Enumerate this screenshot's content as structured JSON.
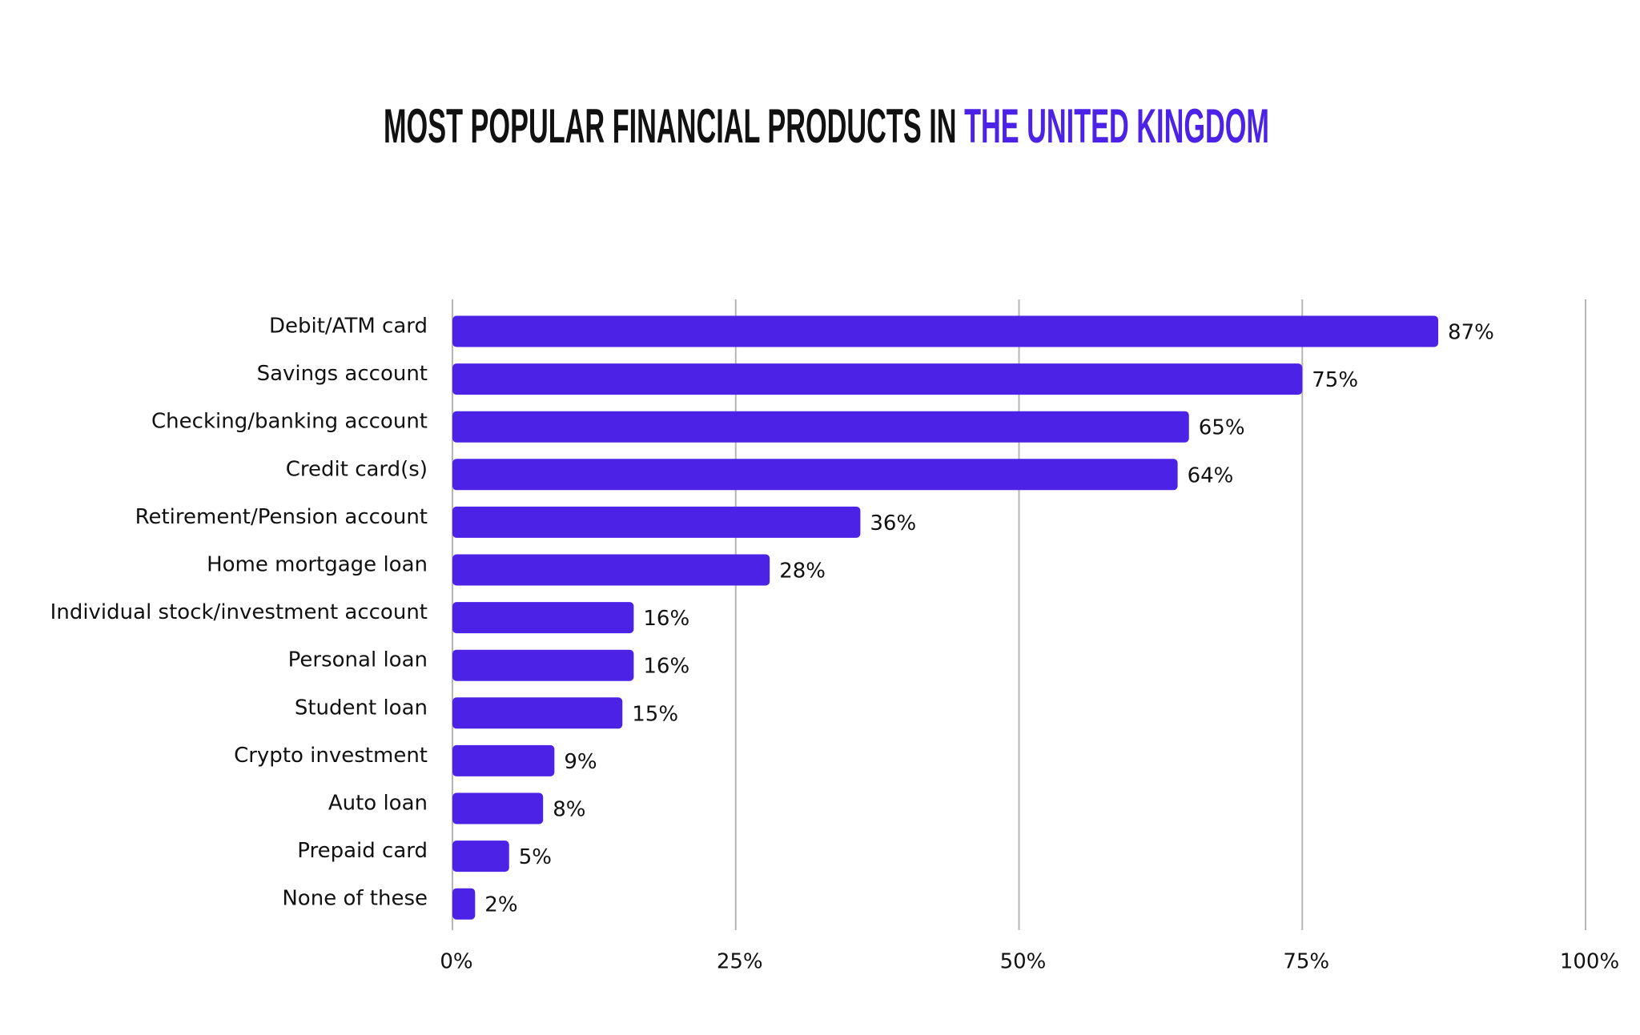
{
  "chart_data": {
    "type": "bar",
    "orientation": "horizontal",
    "title": "MOST POPULAR FINANCIAL PRODUCTS IN",
    "title_highlight": "THE UNITED KINGDOM",
    "title_highlight_color": "#4b22e6",
    "categories": [
      "Debit/ATM card",
      "Savings account",
      "Checking/banking account",
      "Credit card(s)",
      "Retirement/Pension account",
      "Home mortgage loan",
      "Individual stock/investment account",
      "Personal loan",
      "Student loan",
      "Crypto investment",
      "Auto loan",
      "Prepaid card",
      "None of these"
    ],
    "values": [
      87,
      75,
      65,
      64,
      36,
      28,
      16,
      16,
      15,
      9,
      8,
      5,
      2
    ],
    "value_labels": [
      "87%",
      "75%",
      "65%",
      "64%",
      "36%",
      "28%",
      "16%",
      "16%",
      "15%",
      "9%",
      "8%",
      "5%",
      "2%"
    ],
    "color": "#4b22e6",
    "xlim": [
      0,
      100
    ],
    "xticks": [
      {
        "value": 0,
        "label": "0%"
      },
      {
        "value": 25,
        "label": "25%"
      },
      {
        "value": 50,
        "label": "50%"
      },
      {
        "value": 75,
        "label": "75%"
      },
      {
        "value": 100,
        "label": "100%"
      }
    ],
    "grid": true
  }
}
